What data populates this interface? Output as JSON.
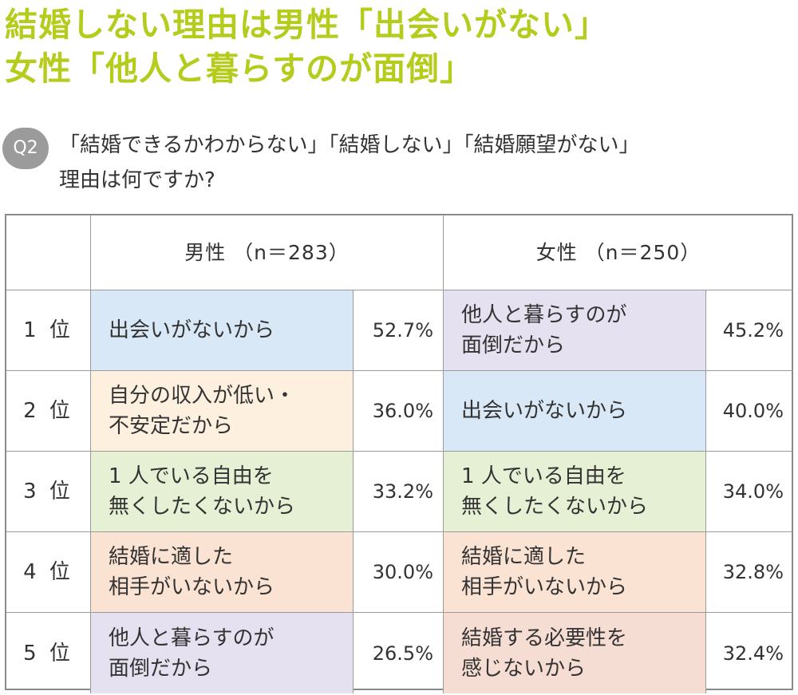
{
  "headline": {
    "line1": "結婚しない理由は男性「出会いがない」",
    "line2": "女性「他人と暮らすのが面倒」"
  },
  "question": {
    "badge": "Q2",
    "line1": "「結婚できるかわからない」「結婚しない」「結婚願望がない」",
    "line2": "理由は何ですか?"
  },
  "chart_data": {
    "type": "table",
    "columns": [
      {
        "name": "男性",
        "header": "男性 （n＝283）",
        "n": 283
      },
      {
        "name": "女性",
        "header": "女性 （n＝250）",
        "n": 250
      }
    ],
    "rows": [
      {
        "rank": "1 位",
        "male": {
          "reason": "出会いがないから",
          "value": "52.7%",
          "color": "#d9e8f6"
        },
        "female": {
          "reason": "他人と暮らすのが\n面倒だから",
          "value": "45.2%",
          "color": "#e6e1f0"
        }
      },
      {
        "rank": "2 位",
        "male": {
          "reason": "自分の収入が低い・\n不安定だから",
          "value": "36.0%",
          "color": "#fdf0de"
        },
        "female": {
          "reason": "出会いがないから",
          "value": "40.0%",
          "color": "#d9e8f6"
        }
      },
      {
        "rank": "3 位",
        "male": {
          "reason": "1 人でいる自由を\n無くしたくないから",
          "value": "33.2%",
          "color": "#e6f0d4"
        },
        "female": {
          "reason": "1 人でいる自由を\n無くしたくないから",
          "value": "34.0%",
          "color": "#e6f0d4"
        }
      },
      {
        "rank": "4 位",
        "male": {
          "reason": "結婚に適した\n相手がいないから",
          "value": "30.0%",
          "color": "#fbe3d3"
        },
        "female": {
          "reason": "結婚に適した\n相手がいないから",
          "value": "32.8%",
          "color": "#fbe3d3"
        }
      },
      {
        "rank": "5 位",
        "male": {
          "reason": "他人と暮らすのが\n面倒だから",
          "value": "26.5%",
          "color": "#e6e1f0"
        },
        "female": {
          "reason": "結婚する必要性を\n感じないから",
          "value": "32.4%",
          "color": "#f6ddd3"
        }
      }
    ]
  }
}
